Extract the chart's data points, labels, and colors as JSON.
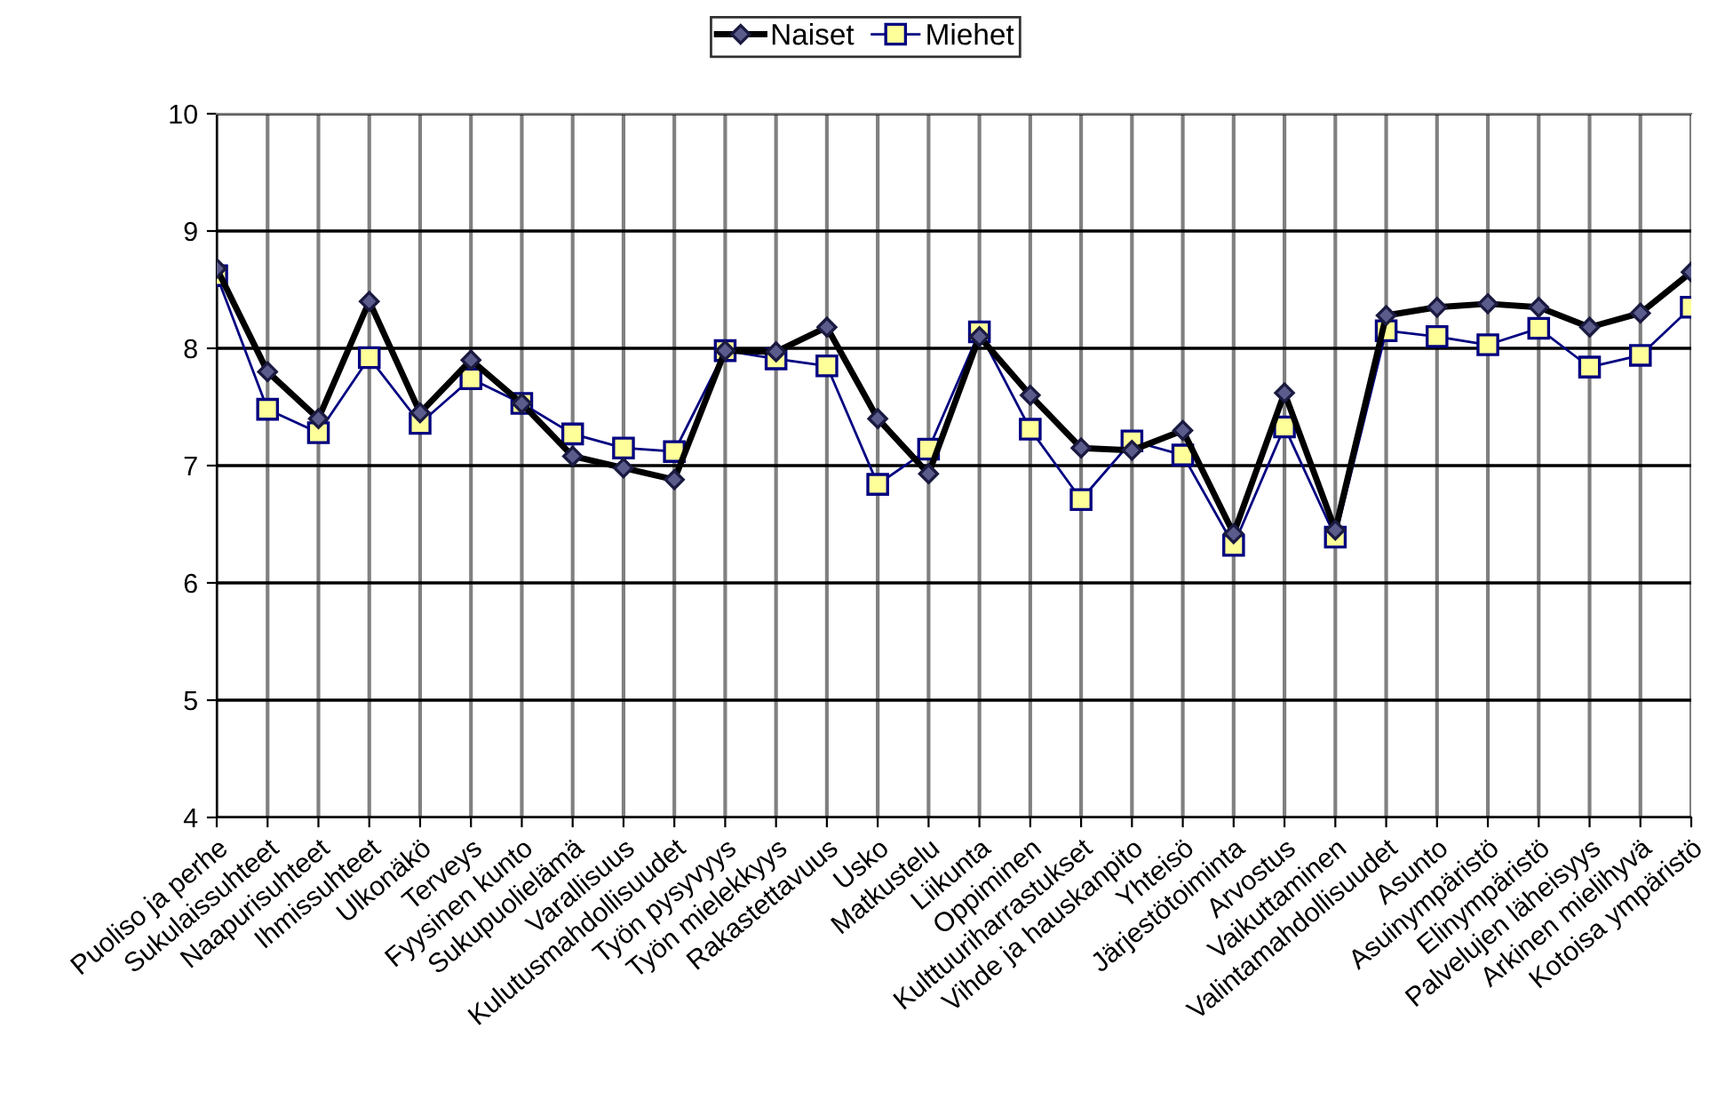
{
  "chart_data": {
    "type": "line",
    "categories": [
      "Puoliso ja perhe",
      "Sukulaissuhteet",
      "Naapurisuhteet",
      "Ihmissuhteet",
      "Ulkonäkö",
      "Terveys",
      "Fyysinen kunto",
      "Sukupuolielämä",
      "Varallisuus",
      "Kulutusmahdollisuudet",
      "Työn pysyvyys",
      "Työn mielekkyys",
      "Rakastettavuus",
      "Usko",
      "Matkustelu",
      "Liikunta",
      "Oppiminen",
      "Kulttuuriharrastukset",
      "Vihde ja hauskanpito",
      "Yhteisö",
      "Järjestötoiminta",
      "Arvostus",
      "Vaikuttaminen",
      "Valintamahdollisuudet",
      "Asunto",
      "Asuinympäristö",
      "Elinympäristö",
      "Palvelujen läheisyys",
      "Arkinen mielihyvä",
      "Kotoisa ympäristö"
    ],
    "series": [
      {
        "name": "Naiset",
        "color": "#000000",
        "marker": "diamond",
        "values": [
          8.68,
          7.8,
          7.4,
          8.4,
          7.45,
          7.9,
          7.53,
          7.08,
          6.98,
          6.88,
          7.98,
          7.97,
          8.18,
          7.4,
          6.93,
          8.1,
          7.6,
          7.15,
          7.13,
          7.3,
          6.42,
          7.62,
          6.45,
          8.28,
          8.35,
          8.38,
          8.35,
          8.18,
          8.3,
          8.65
        ]
      },
      {
        "name": "Miehet",
        "color": "#000080",
        "marker": "square",
        "values": [
          8.62,
          7.48,
          7.28,
          7.92,
          7.36,
          7.74,
          7.53,
          7.27,
          7.15,
          7.12,
          7.98,
          7.91,
          7.85,
          6.84,
          7.14,
          8.14,
          7.31,
          6.71,
          7.21,
          7.09,
          6.32,
          7.33,
          6.39,
          8.15,
          8.1,
          8.03,
          8.17,
          7.84,
          7.94,
          8.35
        ]
      }
    ],
    "ylim": [
      4,
      10
    ],
    "yticks": [
      4,
      5,
      6,
      7,
      8,
      9,
      10
    ],
    "grid": true,
    "legend": "top"
  }
}
